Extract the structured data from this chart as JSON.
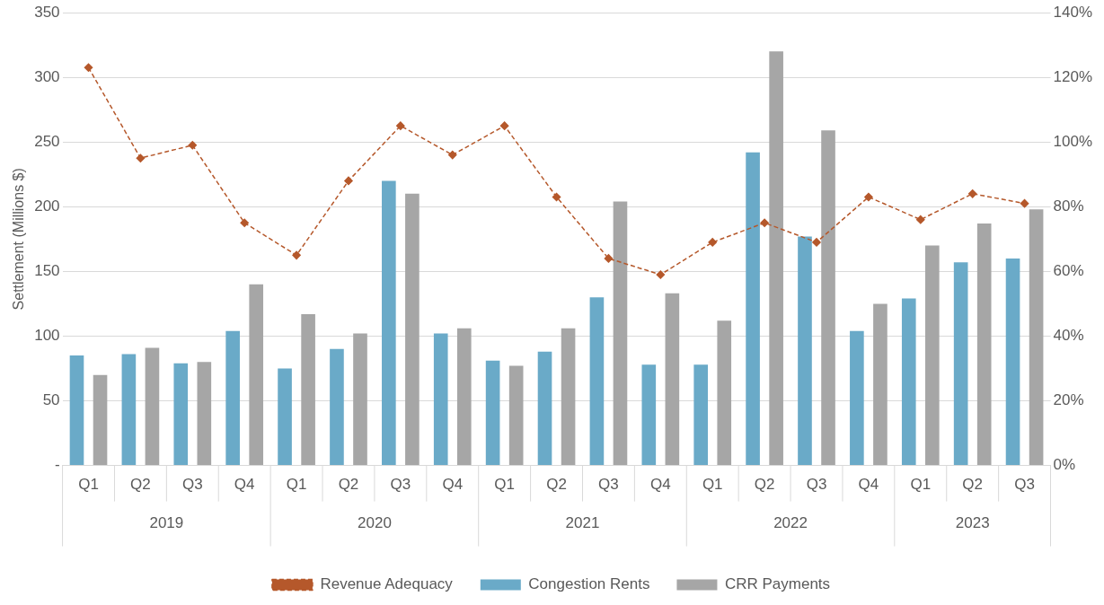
{
  "chart_data": {
    "type": "bar",
    "ylabel": "Settlement (Millions $)",
    "categories": [
      "Q1",
      "Q2",
      "Q3",
      "Q4",
      "Q1",
      "Q2",
      "Q3",
      "Q4",
      "Q1",
      "Q2",
      "Q3",
      "Q4",
      "Q1",
      "Q2",
      "Q3",
      "Q4",
      "Q1",
      "Q2",
      "Q3"
    ],
    "annotations": [
      "2019",
      "2020",
      "2021",
      "2022",
      "2023"
    ],
    "series": [
      {
        "name": "Congestion Rents",
        "color": "#6aaac8",
        "values": [
          85,
          86,
          79,
          104,
          75,
          90,
          220,
          102,
          81,
          88,
          130,
          78,
          78,
          242,
          177,
          104,
          129,
          157,
          160
        ]
      },
      {
        "name": "CRR Payments",
        "color": "#a6a6a6",
        "values": [
          70,
          91,
          80,
          140,
          117,
          102,
          210,
          106,
          77,
          106,
          204,
          133,
          112,
          320,
          259,
          125,
          170,
          187,
          198
        ]
      },
      {
        "name": "Revenue Adequacy",
        "type": "line",
        "axis": "y2",
        "color": "#b5582b",
        "line_style": "dashed",
        "marker": "diamond",
        "values": [
          123,
          95,
          99,
          75,
          65,
          88,
          105,
          96,
          105,
          83,
          64,
          59,
          69,
          75,
          69,
          83,
          76,
          84,
          81
        ]
      }
    ],
    "ylim": [
      0,
      350
    ],
    "yticks": [
      {
        "value": 0,
        "label": "-"
      },
      50,
      100,
      150,
      200,
      250,
      300,
      350
    ],
    "y2lim": [
      0,
      140
    ],
    "y2ticks": [
      {
        "value": 0,
        "label": "0%"
      },
      {
        "value": 20,
        "label": "20%"
      },
      {
        "value": 40,
        "label": "40%"
      },
      {
        "value": 60,
        "label": "60%"
      },
      {
        "value": 80,
        "label": "80%"
      },
      {
        "value": 100,
        "label": "100%"
      },
      {
        "value": 120,
        "label": "120%"
      },
      {
        "value": 140,
        "label": "140%"
      }
    ],
    "grid": "y",
    "legend": "bottom"
  }
}
